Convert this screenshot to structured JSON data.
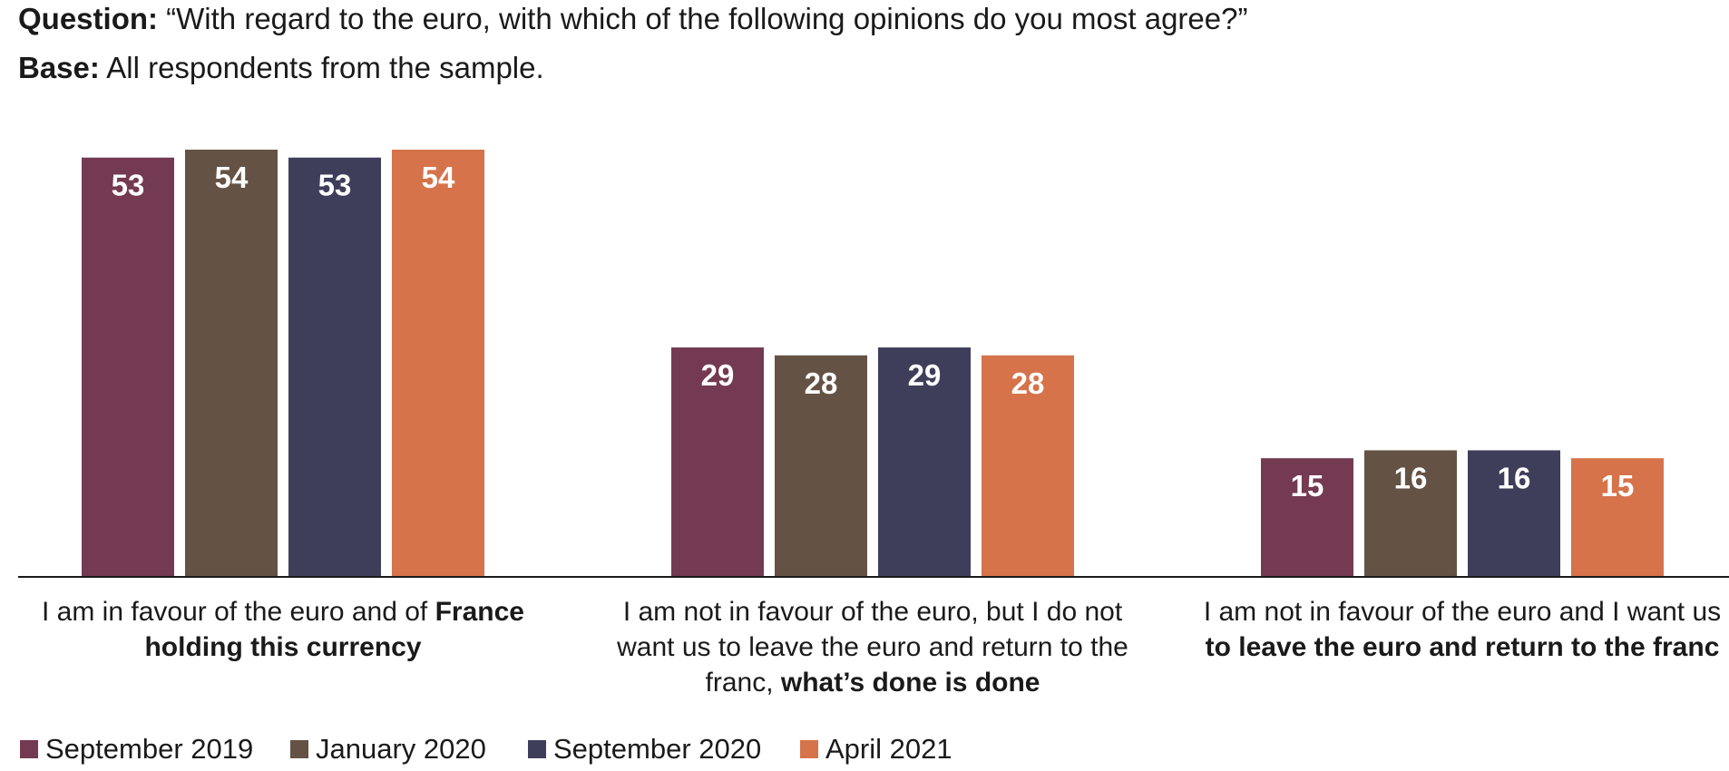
{
  "header": {
    "question_label": "Question:",
    "question_text": "“With regard to the euro, with which of the following opinions do you most agree?”",
    "base_label": "Base:",
    "base_text": "All respondents from the sample."
  },
  "chart_data": {
    "type": "bar",
    "categories": [
      "I am in favour of the euro and of France holding this currency",
      "I am not in favour of the euro, but I do not want us to leave the euro and return to the franc, what’s done is done",
      "I am not in favour of the euro and I want us to leave the euro and return to the franc"
    ],
    "category_label_lines": [
      [
        [
          {
            "text": "I am in favour of the euro and of ",
            "bold": false
          },
          {
            "text": "France",
            "bold": true
          }
        ],
        [
          {
            "text": "holding this currency",
            "bold": true
          }
        ]
      ],
      [
        [
          {
            "text": "I am not in favour of the euro, but I do not",
            "bold": false
          }
        ],
        [
          {
            "text": "want us to leave the euro and return to the",
            "bold": false
          }
        ],
        [
          {
            "text": "franc, ",
            "bold": false
          },
          {
            "text": "what’s done is done",
            "bold": true
          }
        ]
      ],
      [
        [
          {
            "text": "I am not in favour of the euro and I want us",
            "bold": false
          }
        ],
        [
          {
            "text": "to leave the euro and return to the franc",
            "bold": true
          }
        ]
      ]
    ],
    "series": [
      {
        "name": "September 2019",
        "color": "#733A52",
        "values": [
          53,
          29,
          15
        ]
      },
      {
        "name": "January 2020",
        "color": "#645244",
        "values": [
          54,
          28,
          16
        ]
      },
      {
        "name": "September 2020",
        "color": "#3F3E5A",
        "values": [
          53,
          29,
          16
        ]
      },
      {
        "name": "April 2021",
        "color": "#D6734A",
        "values": [
          54,
          28,
          15
        ]
      }
    ],
    "ylim": [
      0,
      54
    ],
    "data_labels": true,
    "grid": false,
    "legend_position": "bottom-left"
  }
}
